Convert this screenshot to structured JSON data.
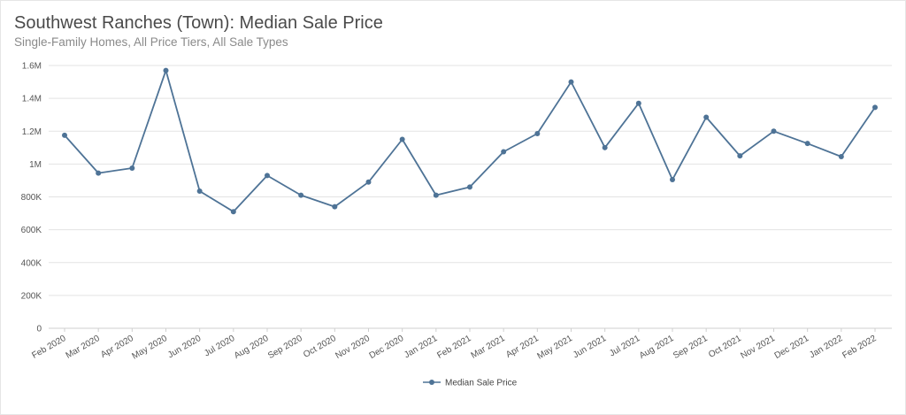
{
  "chart_data": {
    "type": "line",
    "title": "Southwest Ranches (Town): Median Sale Price",
    "subtitle": "Single-Family Homes, All Price Tiers, All Sale Types",
    "xlabel": "",
    "ylabel": "",
    "ylim": [
      0,
      1600000
    ],
    "yticks": [
      {
        "value": 0,
        "label": "0"
      },
      {
        "value": 200000,
        "label": "200K"
      },
      {
        "value": 400000,
        "label": "400K"
      },
      {
        "value": 600000,
        "label": "600K"
      },
      {
        "value": 800000,
        "label": "800K"
      },
      {
        "value": 1000000,
        "label": "1M"
      },
      {
        "value": 1200000,
        "label": "1.2M"
      },
      {
        "value": 1400000,
        "label": "1.4M"
      },
      {
        "value": 1600000,
        "label": "1.6M"
      }
    ],
    "categories": [
      "Feb 2020",
      "Mar 2020",
      "Apr 2020",
      "May 2020",
      "Jun 2020",
      "Jul 2020",
      "Aug 2020",
      "Sep 2020",
      "Oct 2020",
      "Nov 2020",
      "Dec 2020",
      "Jan 2021",
      "Feb 2021",
      "Mar 2021",
      "Apr 2021",
      "May 2021",
      "Jun 2021",
      "Jul 2021",
      "Aug 2021",
      "Sep 2021",
      "Oct 2021",
      "Nov 2021",
      "Dec 2021",
      "Jan 2022",
      "Feb 2022"
    ],
    "series": [
      {
        "name": "Median Sale Price",
        "color": "#4e7396",
        "values": [
          1175000,
          945000,
          975000,
          1570000,
          835000,
          710000,
          930000,
          810000,
          740000,
          890000,
          1150000,
          810000,
          860000,
          1075000,
          1185000,
          1500000,
          1100000,
          1370000,
          905000,
          1285000,
          1050000,
          1200000,
          1125000,
          1045000,
          1345000
        ]
      }
    ],
    "legend": {
      "position": "bottom-center",
      "label": "Median Sale Price"
    },
    "grid": true
  }
}
